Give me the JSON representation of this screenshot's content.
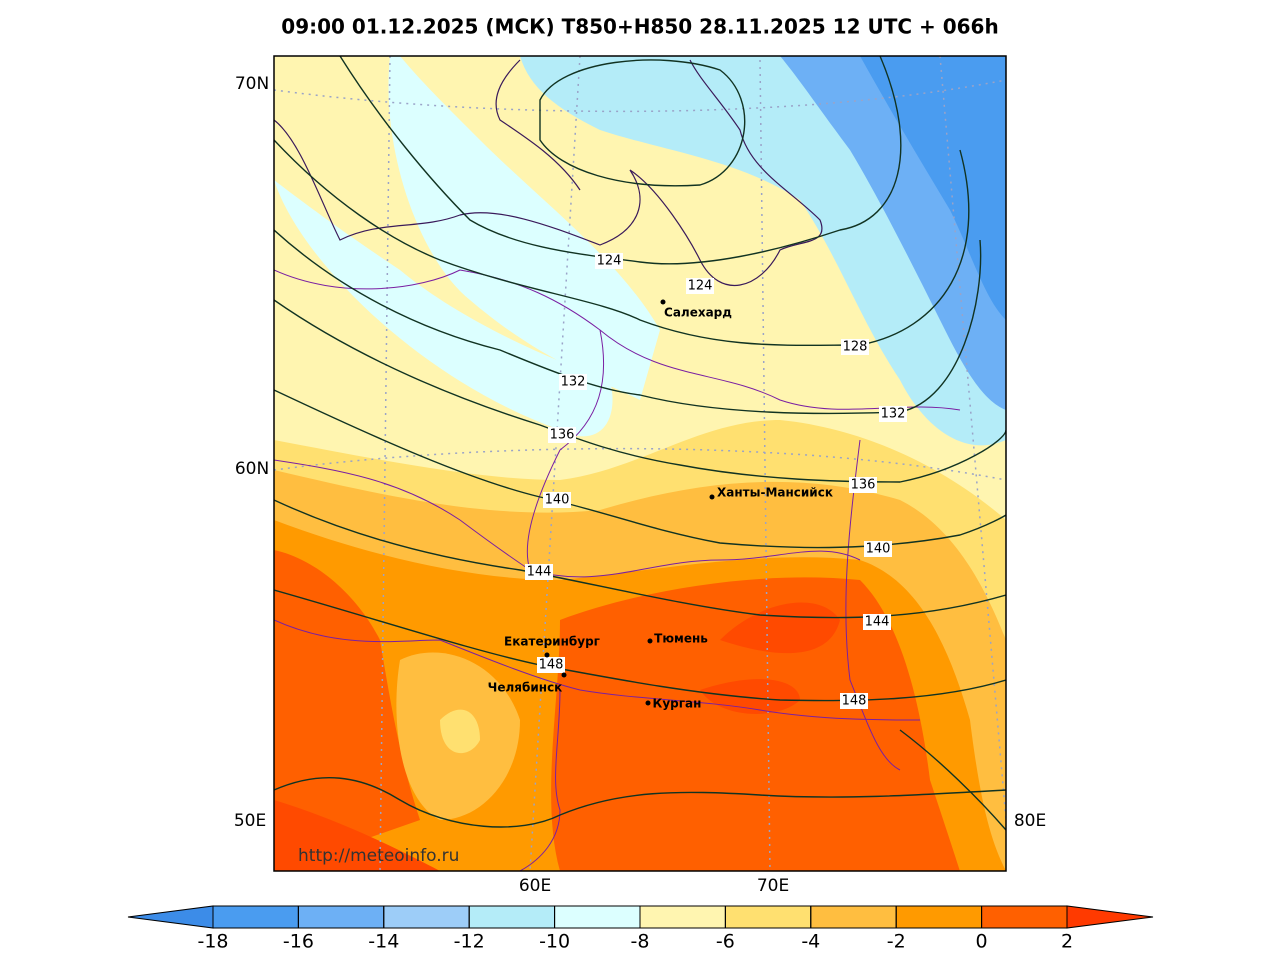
{
  "title": "09:00 01.12.2025 (МСК) T850+H850 28.11.2025 12 UTC + 066h",
  "map": {
    "lat_labels": [
      "70N",
      "60N"
    ],
    "lon_labels": [
      "50E",
      "60E",
      "70E",
      "80E"
    ],
    "contour_labels": [
      124,
      124,
      128,
      132,
      132,
      136,
      136,
      140,
      140,
      144,
      144,
      148,
      148
    ],
    "cities": [
      "Салехард",
      "Ханты-Мансийск",
      "Екатеринбург",
      "Тюмень",
      "Челябинск",
      "Курган"
    ],
    "url": "http://meteoinfo.ru"
  },
  "colorbar": {
    "ticks": [
      -18,
      -16,
      -14,
      -12,
      -10,
      -8,
      -6,
      -4,
      -2,
      0,
      2
    ],
    "colors": [
      "#4a9cf0",
      "#6db0f5",
      "#9dcdf8",
      "#b4ecf8",
      "#dcffff",
      "#fff5b0",
      "#ffe070",
      "#ffbe40",
      "#ff9a00",
      "#ff6000"
    ],
    "extend_colors": [
      "#3c8ce8",
      "#ff3a00"
    ]
  }
}
